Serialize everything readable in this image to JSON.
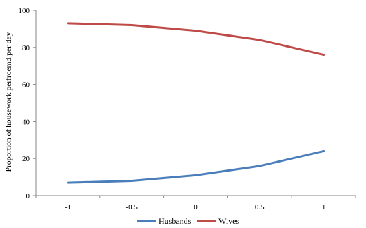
{
  "chart_data": {
    "type": "line",
    "title": "",
    "xlabel": "",
    "ylabel": "Proportion of housework perfroemd per day",
    "categories": [
      "-1",
      "-0.5",
      "0",
      "0.5",
      "1"
    ],
    "ylim": [
      0,
      100
    ],
    "yticks": [
      "0",
      "20",
      "40",
      "60",
      "80",
      "100"
    ],
    "grid": false,
    "legend_position": "bottom",
    "series": [
      {
        "name": "Husbands",
        "color": "#4a7ebb",
        "values": [
          7,
          8,
          11,
          16,
          24
        ]
      },
      {
        "name": "Wives",
        "color": "#be4b48",
        "values": [
          93,
          92,
          89,
          84,
          76
        ]
      }
    ]
  }
}
